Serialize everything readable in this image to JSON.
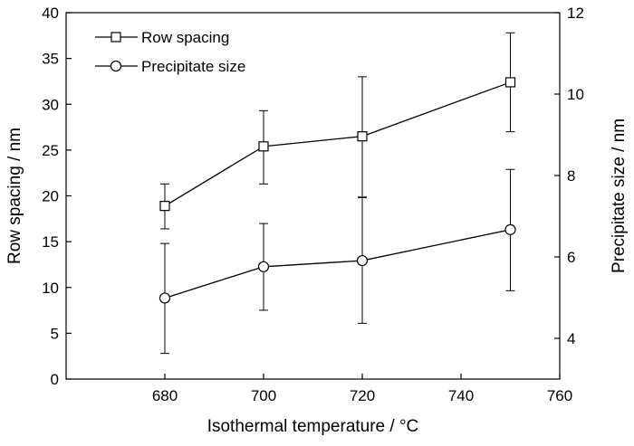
{
  "chart_data": {
    "type": "line",
    "xlabel": "Isothermal temperature / °C",
    "ylabel_left": "Row spacing / nm",
    "ylabel_right": "Precipitate size / nm",
    "xlim": [
      660,
      760
    ],
    "ylim_left": [
      0,
      40
    ],
    "ylim_right": [
      3,
      12
    ],
    "x_ticks": [
      680,
      700,
      720,
      740,
      760
    ],
    "y_left_ticks": [
      0,
      5,
      10,
      15,
      20,
      25,
      30,
      35,
      40
    ],
    "y_right_ticks": [
      4,
      6,
      8,
      10,
      12
    ],
    "grid": false,
    "legend_position": "top-left",
    "series": [
      {
        "name": "Row spacing",
        "axis": "left",
        "marker": "square",
        "color": "#000000",
        "x": [
          680,
          700,
          720,
          750
        ],
        "y": [
          18.9,
          25.4,
          26.5,
          32.4
        ],
        "err_low": [
          16.4,
          21.3,
          19.8,
          27.0
        ],
        "err_high": [
          21.3,
          29.3,
          33.0,
          37.8
        ]
      },
      {
        "name": "Precipitate size",
        "axis": "right",
        "marker": "circle",
        "color": "#000000",
        "x": [
          680,
          700,
          720,
          750
        ],
        "y": [
          4.99,
          5.76,
          5.91,
          6.67
        ],
        "err_low": [
          3.63,
          4.69,
          4.37,
          5.17
        ],
        "err_high": [
          6.33,
          6.82,
          7.47,
          8.15
        ]
      }
    ]
  }
}
